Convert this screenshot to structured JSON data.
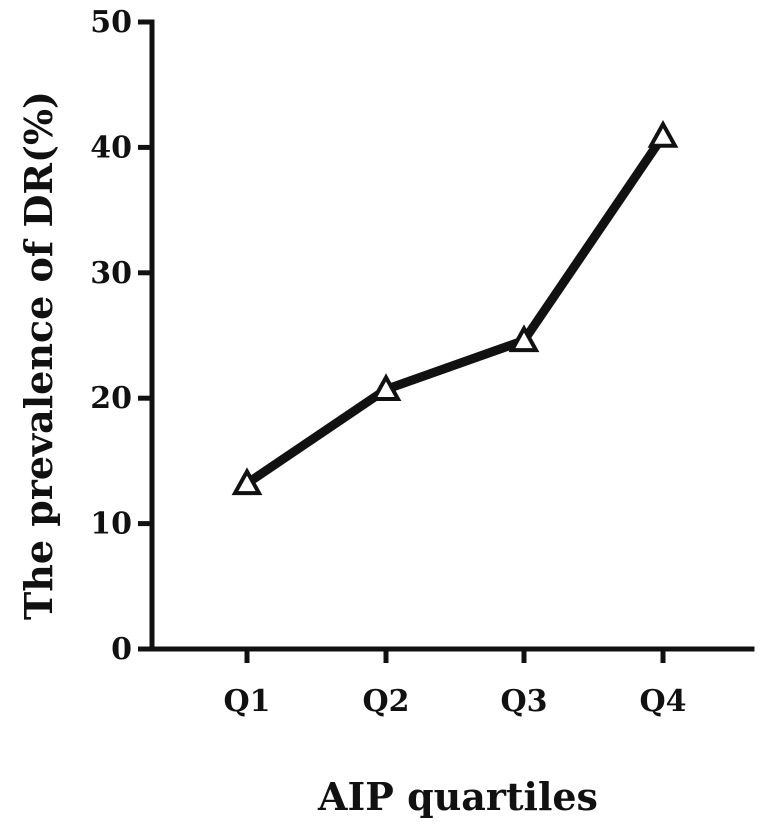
{
  "chart_data": {
    "type": "line",
    "categories": [
      "Q1",
      "Q2",
      "Q3",
      "Q4"
    ],
    "values": [
      13.2,
      20.7,
      24.6,
      40.9
    ],
    "xlabel": "AIP quartiles",
    "ylabel": "The prevalence of DR(%)",
    "ylim": [
      0,
      50
    ],
    "yticks": [
      "0",
      "10",
      "20",
      "30",
      "40",
      "50"
    ],
    "marker": "open-triangle",
    "grid": false
  }
}
